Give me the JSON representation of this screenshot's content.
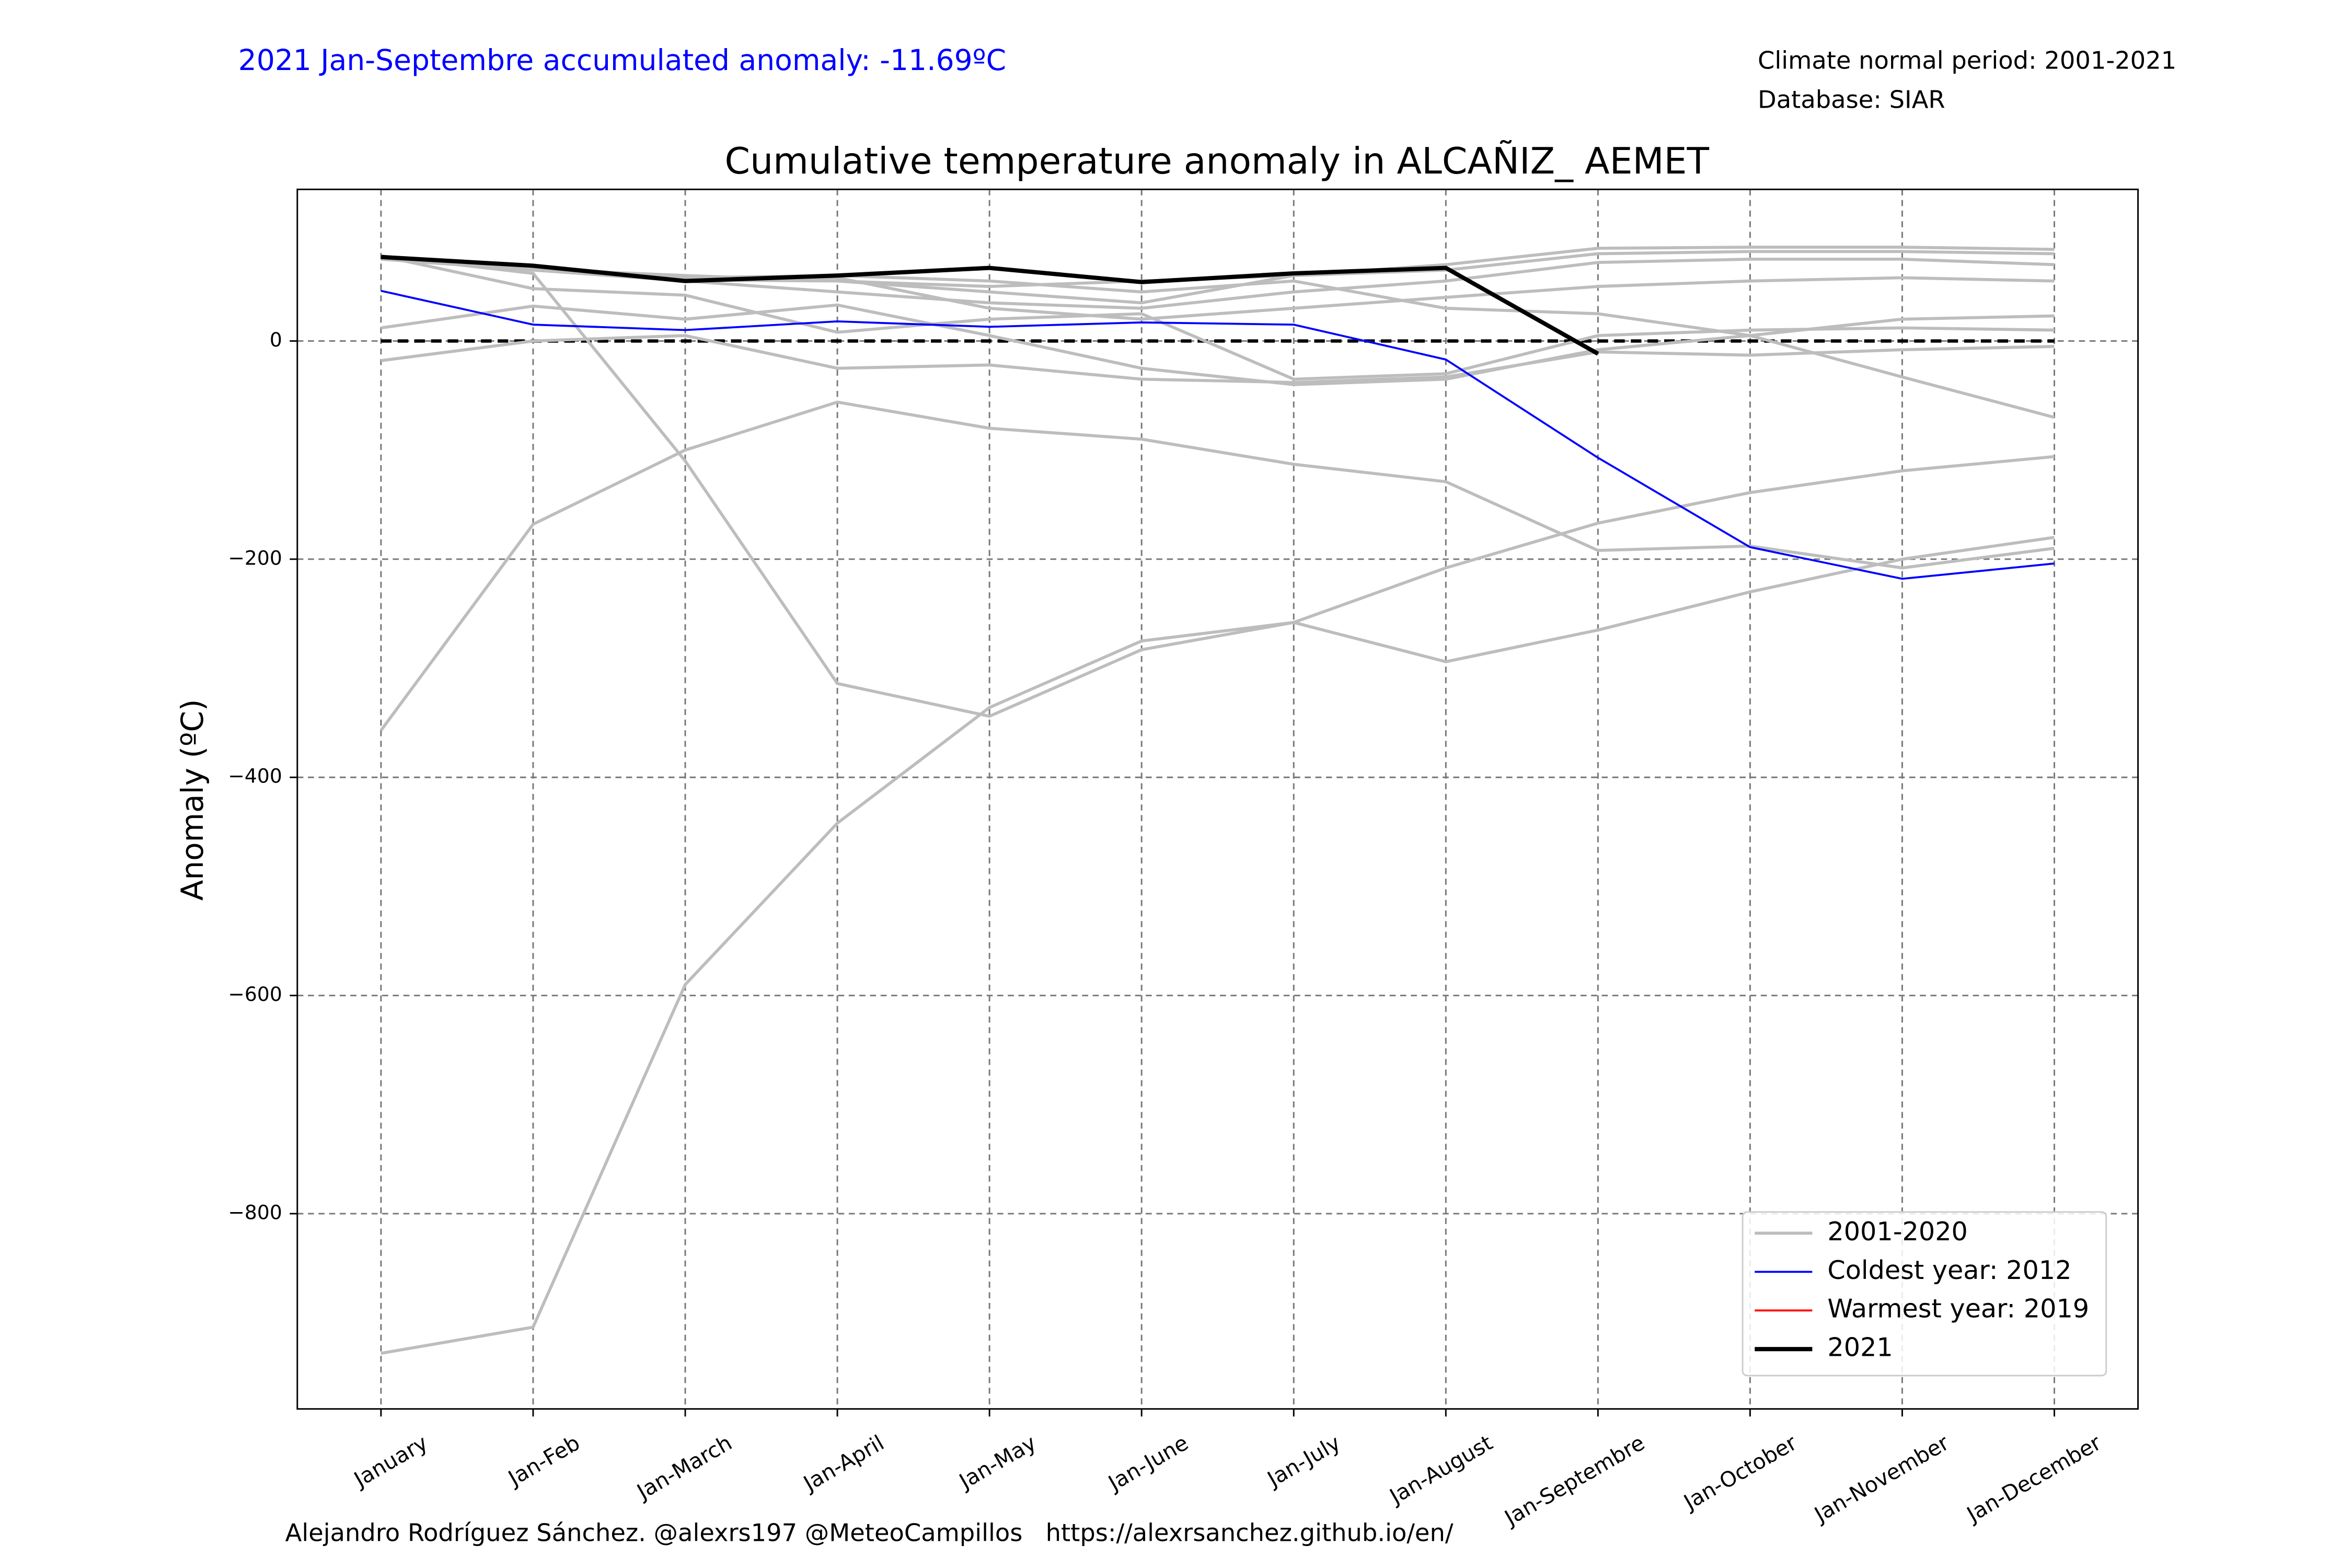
{
  "header": {
    "anomaly_note": "2021 Jan-Septembre accumulated anomaly: -11.69ºC",
    "normal_period": "Climate normal period: 2001-2021",
    "database": "Database: SIAR"
  },
  "footer": "Alejandro Rodríguez Sánchez. @alexrs197 @MeteoCampillos   https://alexrsanchez.github.io/en/",
  "chart_data": {
    "type": "line",
    "title": "Cumulative temperature anomaly in ALCAÑIZ_ AEMET",
    "y_label": "Anomaly (ºC)",
    "categories": [
      "January",
      "Jan-Feb",
      "Jan-March",
      "Jan-April",
      "Jan-May",
      "Jan-June",
      "Jan-July",
      "Jan-August",
      "Jan-Septembre",
      "Jan-October",
      "Jan-November",
      "Jan-December"
    ],
    "ylim": [
      -979,
      139
    ],
    "yticks": [
      {
        "value": -800,
        "label": "−800"
      },
      {
        "value": -600,
        "label": "−600"
      },
      {
        "value": -400,
        "label": "−400"
      },
      {
        "value": -200,
        "label": "−200"
      },
      0
    ],
    "grid": true,
    "reference_line": 0,
    "legend": "lower right",
    "series": [
      {
        "name": "2001-2020",
        "color": "#bdbdbd",
        "lines": [
          [
            -928,
            -904,
            -590,
            -442,
            -336,
            -275,
            -258,
            -208,
            -167,
            -139,
            -119,
            -106
          ],
          [
            78,
            62,
            -110,
            -314,
            -344,
            -283,
            -258,
            -294,
            -265,
            -230,
            -200,
            -180
          ],
          [
            -357,
            -168,
            -100,
            -56,
            -80,
            -90,
            -113,
            -129,
            -192,
            -188,
            -208,
            -190
          ],
          [
            -18,
            0,
            5,
            -25,
            -22,
            -35,
            -38,
            -33,
            -10,
            -13,
            -8,
            -5
          ],
          [
            12,
            32,
            20,
            33,
            5,
            -25,
            -40,
            -35,
            -8,
            5,
            20,
            23
          ],
          [
            78,
            48,
            42,
            8,
            20,
            25,
            -35,
            -30,
            5,
            10,
            12,
            10
          ],
          [
            75,
            68,
            58,
            58,
            30,
            20,
            30,
            40,
            50,
            55,
            58,
            55
          ],
          [
            75,
            65,
            55,
            45,
            35,
            30,
            45,
            55,
            72,
            75,
            75,
            70
          ],
          [
            76,
            66,
            60,
            55,
            50,
            55,
            60,
            65,
            80,
            82,
            82,
            80
          ],
          [
            76,
            68,
            58,
            60,
            55,
            45,
            55,
            30,
            25,
            5,
            -33,
            -70
          ],
          [
            76,
            66,
            56,
            55,
            45,
            35,
            60,
            70,
            85,
            86,
            86,
            84
          ]
        ]
      },
      {
        "name": "Coldest year: 2012",
        "color": "#0000ff",
        "values": [
          46,
          15,
          10,
          18,
          13,
          17,
          15,
          -17,
          -107,
          -189,
          -218,
          -204
        ]
      },
      {
        "name": "Warmest year: 2019",
        "color": "#ff0000",
        "values": [
          null,
          null,
          null,
          null,
          null,
          null,
          null,
          null,
          null,
          null,
          null,
          null
        ]
      },
      {
        "name": "2021",
        "color": "#000000",
        "values": [
          77,
          69,
          55,
          60,
          67,
          54,
          62,
          67,
          -11.69,
          null,
          null,
          null
        ]
      }
    ]
  }
}
